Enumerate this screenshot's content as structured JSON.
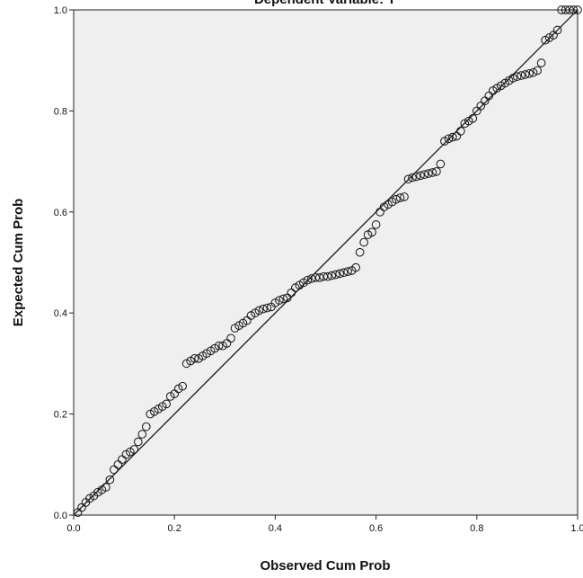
{
  "chart_data": {
    "type": "scatter",
    "title": "Dependent Variable: Y",
    "xlabel": "Observed Cum Prob",
    "ylabel": "Expected Cum Prob",
    "xlim": [
      0.0,
      1.0
    ],
    "ylim": [
      0.0,
      1.0
    ],
    "x_ticks": [
      "0.0",
      "0.2",
      "0.4",
      "0.6",
      "0.8",
      "1.0"
    ],
    "y_ticks": [
      "0.0",
      "0.2",
      "0.4",
      "0.6",
      "0.8",
      "1.0"
    ],
    "grid": false,
    "background_color": "#efefef",
    "reference_line": {
      "from": [
        0,
        0
      ],
      "to": [
        1,
        1
      ]
    },
    "series": [
      {
        "x": [
          0.008,
          0.016,
          0.024,
          0.032,
          0.04,
          0.048,
          0.056,
          0.064,
          0.072,
          0.08,
          0.088,
          0.096,
          0.104,
          0.112,
          0.12,
          0.128,
          0.136,
          0.144,
          0.152,
          0.16,
          0.168,
          0.176,
          0.184,
          0.192,
          0.2,
          0.208,
          0.216,
          0.224,
          0.232,
          0.24,
          0.248,
          0.256,
          0.264,
          0.272,
          0.28,
          0.288,
          0.296,
          0.304,
          0.312,
          0.32,
          0.328,
          0.336,
          0.344,
          0.352,
          0.36,
          0.368,
          0.376,
          0.384,
          0.392,
          0.4,
          0.408,
          0.416,
          0.424,
          0.432,
          0.44,
          0.448,
          0.456,
          0.464,
          0.472,
          0.48,
          0.488,
          0.496,
          0.504,
          0.512,
          0.52,
          0.528,
          0.536,
          0.544,
          0.552,
          0.56,
          0.568,
          0.576,
          0.584,
          0.592,
          0.6,
          0.608,
          0.616,
          0.624,
          0.632,
          0.64,
          0.648,
          0.656,
          0.664,
          0.672,
          0.68,
          0.688,
          0.696,
          0.704,
          0.712,
          0.72,
          0.728,
          0.736,
          0.744,
          0.752,
          0.76,
          0.768,
          0.776,
          0.784,
          0.792,
          0.8,
          0.808,
          0.816,
          0.824,
          0.832,
          0.84,
          0.848,
          0.856,
          0.864,
          0.872,
          0.88,
          0.888,
          0.896,
          0.904,
          0.912,
          0.92,
          0.928,
          0.936,
          0.944,
          0.952,
          0.96,
          0.968,
          0.976,
          0.984,
          0.992,
          1.0
        ],
        "y": [
          0.005,
          0.015,
          0.025,
          0.033,
          0.038,
          0.045,
          0.05,
          0.055,
          0.07,
          0.09,
          0.1,
          0.11,
          0.12,
          0.125,
          0.13,
          0.145,
          0.16,
          0.175,
          0.2,
          0.205,
          0.21,
          0.215,
          0.22,
          0.235,
          0.24,
          0.25,
          0.255,
          0.3,
          0.305,
          0.31,
          0.31,
          0.315,
          0.32,
          0.325,
          0.33,
          0.335,
          0.335,
          0.34,
          0.35,
          0.37,
          0.375,
          0.38,
          0.385,
          0.395,
          0.4,
          0.405,
          0.408,
          0.41,
          0.412,
          0.42,
          0.425,
          0.428,
          0.43,
          0.44,
          0.45,
          0.455,
          0.46,
          0.465,
          0.468,
          0.47,
          0.47,
          0.472,
          0.472,
          0.474,
          0.476,
          0.478,
          0.48,
          0.482,
          0.484,
          0.49,
          0.52,
          0.54,
          0.555,
          0.56,
          0.575,
          0.6,
          0.61,
          0.615,
          0.62,
          0.625,
          0.628,
          0.63,
          0.665,
          0.668,
          0.67,
          0.672,
          0.674,
          0.676,
          0.678,
          0.68,
          0.695,
          0.74,
          0.745,
          0.748,
          0.75,
          0.76,
          0.775,
          0.78,
          0.785,
          0.8,
          0.81,
          0.82,
          0.83,
          0.84,
          0.845,
          0.85,
          0.855,
          0.86,
          0.865,
          0.868,
          0.87,
          0.872,
          0.874,
          0.876,
          0.88,
          0.895,
          0.94,
          0.945,
          0.95,
          0.96,
          1.0,
          1.0,
          1.0,
          1.0,
          1.0
        ]
      }
    ]
  }
}
